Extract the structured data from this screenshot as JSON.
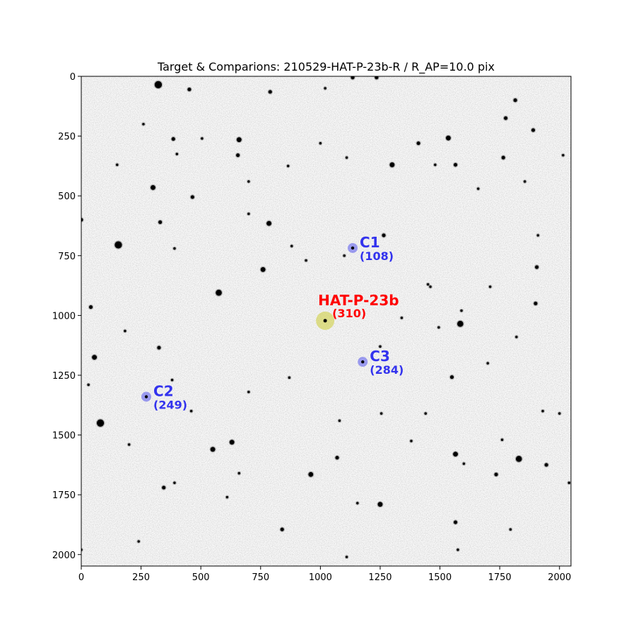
{
  "chart_data": {
    "type": "scatter",
    "title": "Target & Comparions: 210529-HAT-P-23b-R / R_AP=10.0 pix",
    "xlabel": "",
    "ylabel": "",
    "xlim": [
      0,
      2048
    ],
    "ylim": [
      2048,
      0
    ],
    "x_ticks": [
      0,
      250,
      500,
      750,
      1000,
      1250,
      1500,
      1750,
      2000
    ],
    "y_ticks": [
      0,
      250,
      500,
      750,
      1000,
      1250,
      1500,
      1750,
      2000
    ],
    "grid": false,
    "background": "inverted grayscale star field",
    "target": {
      "name": "HAT-P-23b",
      "count": "(310)",
      "x": 1020,
      "y": 1022,
      "color": "#ff0000",
      "marker_color": "#cccc33"
    },
    "comparisons": [
      {
        "name": "C1",
        "count": "(108)",
        "x": 1135,
        "y": 718,
        "color": "#3333ee"
      },
      {
        "name": "C2",
        "count": "(249)",
        "x": 272,
        "y": 1340,
        "color": "#3333ee"
      },
      {
        "name": "C3",
        "count": "(284)",
        "x": 1177,
        "y": 1194,
        "color": "#3333ee"
      }
    ],
    "stars": [
      [
        322,
        35,
        6
      ],
      [
        452,
        55,
        3
      ],
      [
        790,
        65,
        3
      ],
      [
        1020,
        50,
        2
      ],
      [
        1135,
        5,
        3
      ],
      [
        1235,
        5,
        3
      ],
      [
        1815,
        100,
        3
      ],
      [
        1775,
        175,
        3
      ],
      [
        1890,
        225,
        3
      ],
      [
        260,
        200,
        2
      ],
      [
        385,
        262,
        3
      ],
      [
        660,
        265,
        4
      ],
      [
        655,
        330,
        3
      ],
      [
        400,
        325,
        2
      ],
      [
        865,
        375,
        2
      ],
      [
        1110,
        340,
        2
      ],
      [
        1300,
        370,
        4
      ],
      [
        1410,
        280,
        3
      ],
      [
        1535,
        258,
        4
      ],
      [
        1565,
        370,
        3
      ],
      [
        1765,
        340,
        3
      ],
      [
        2015,
        330,
        2
      ],
      [
        300,
        465,
        4
      ],
      [
        465,
        505,
        3
      ],
      [
        1855,
        440,
        2
      ],
      [
        0,
        600,
        3
      ],
      [
        330,
        610,
        3
      ],
      [
        785,
        615,
        4
      ],
      [
        700,
        575,
        2
      ],
      [
        1265,
        665,
        3
      ],
      [
        1910,
        665,
        2
      ],
      [
        155,
        705,
        6
      ],
      [
        760,
        808,
        4
      ],
      [
        390,
        720,
        2
      ],
      [
        880,
        710,
        2
      ],
      [
        1905,
        798,
        3
      ],
      [
        575,
        905,
        5
      ],
      [
        1450,
        870,
        2
      ],
      [
        1460,
        880,
        2
      ],
      [
        1900,
        950,
        3
      ],
      [
        40,
        965,
        3
      ],
      [
        1585,
        1035,
        5
      ],
      [
        1495,
        1050,
        2
      ],
      [
        183,
        1065,
        2
      ],
      [
        325,
        1135,
        3
      ],
      [
        55,
        1175,
        4
      ],
      [
        1550,
        1258,
        3
      ],
      [
        1820,
        1090,
        2
      ],
      [
        80,
        1450,
        6
      ],
      [
        550,
        1560,
        4
      ],
      [
        630,
        1530,
        4
      ],
      [
        1070,
        1595,
        3
      ],
      [
        1565,
        1580,
        4
      ],
      [
        1830,
        1600,
        5
      ],
      [
        1945,
        1625,
        3
      ],
      [
        960,
        1665,
        4
      ],
      [
        1735,
        1665,
        3
      ],
      [
        660,
        1660,
        2
      ],
      [
        345,
        1720,
        3
      ],
      [
        2040,
        1700,
        2
      ],
      [
        1250,
        1790,
        4
      ],
      [
        1155,
        1785,
        2
      ],
      [
        1565,
        1865,
        3
      ],
      [
        840,
        1895,
        3
      ],
      [
        1795,
        1895,
        2
      ],
      [
        1575,
        1980,
        2
      ],
      [
        1110,
        2010,
        2
      ],
      [
        0,
        1980,
        2
      ],
      [
        240,
        1945,
        2
      ],
      [
        390,
        1700,
        2
      ],
      [
        610,
        1760,
        2
      ],
      [
        1080,
        1440,
        2
      ],
      [
        1440,
        1410,
        2
      ],
      [
        1255,
        1410,
        2
      ],
      [
        1600,
        1620,
        2
      ],
      [
        1760,
        1520,
        2
      ],
      [
        1100,
        750,
        2
      ],
      [
        940,
        770,
        2
      ],
      [
        1480,
        370,
        2
      ],
      [
        1660,
        470,
        2
      ],
      [
        505,
        260,
        2
      ],
      [
        150,
        370,
        2
      ],
      [
        700,
        440,
        2
      ],
      [
        1000,
        280,
        2
      ],
      [
        1380,
        1525,
        2
      ],
      [
        1250,
        1130,
        2
      ],
      [
        1930,
        1400,
        2
      ],
      [
        2000,
        1410,
        2
      ],
      [
        30,
        1290,
        2
      ],
      [
        380,
        1270,
        2
      ],
      [
        870,
        1260,
        2
      ],
      [
        1700,
        1200,
        2
      ],
      [
        1340,
        1010,
        2
      ],
      [
        1710,
        880,
        2
      ],
      [
        1590,
        980,
        2
      ],
      [
        200,
        1540,
        2
      ],
      [
        460,
        1400,
        2
      ],
      [
        700,
        1320,
        2
      ]
    ]
  }
}
